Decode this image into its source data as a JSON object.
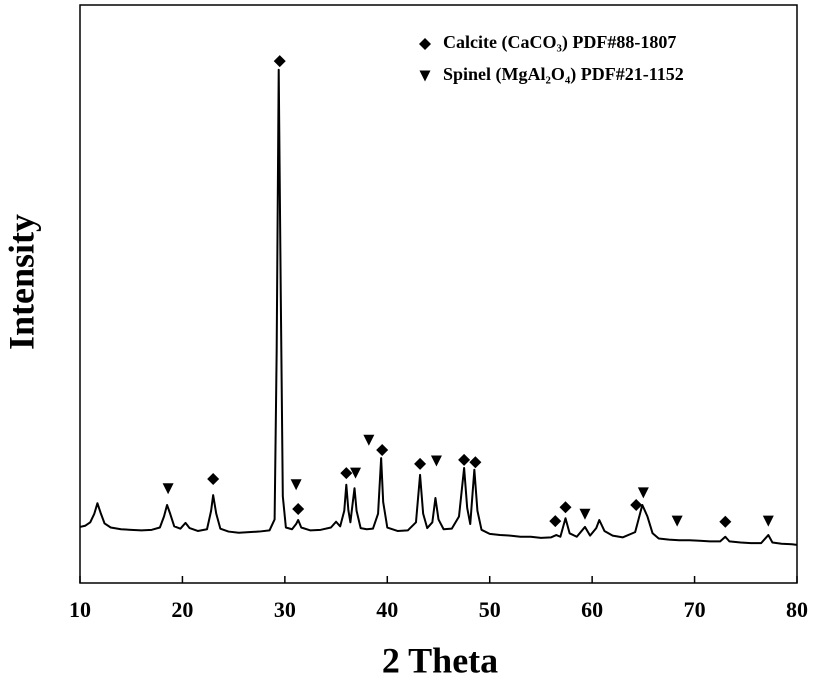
{
  "chart_data": {
    "type": "line",
    "xlabel": "2 Theta",
    "ylabel": "Intensity",
    "color": "#000000",
    "xlim": [
      10,
      80
    ],
    "xticks": [
      10,
      20,
      30,
      40,
      50,
      60,
      70,
      80
    ],
    "ylim": [
      0,
      100
    ],
    "x": [
      10,
      10.5,
      11,
      11.4,
      11.7,
      12,
      12.4,
      13,
      14,
      15,
      16,
      17,
      17.8,
      18.2,
      18.5,
      18.8,
      19.2,
      19.8,
      20.3,
      20.7,
      21.5,
      22.4,
      22.8,
      23.0,
      23.3,
      23.7,
      24.5,
      25.5,
      26.5,
      27.5,
      28.5,
      29.0,
      29.2,
      29.4,
      29.6,
      29.8,
      30.1,
      30.7,
      31.1,
      31.3,
      31.6,
      32.5,
      33.5,
      34.5,
      35.0,
      35.4,
      35.8,
      36.0,
      36.2,
      36.4,
      36.6,
      36.8,
      37.0,
      37.4,
      38.0,
      38.6,
      39.1,
      39.4,
      39.6,
      40.0,
      41,
      42,
      42.8,
      43.2,
      43.5,
      43.9,
      44.4,
      44.7,
      45.0,
      45.5,
      46.3,
      47.0,
      47.5,
      47.8,
      48.1,
      48.5,
      48.8,
      49.2,
      50,
      51,
      52,
      53,
      54,
      55,
      56,
      56.5,
      56.9,
      57.4,
      57.8,
      58.5,
      59.3,
      59.8,
      60.4,
      60.7,
      61.2,
      62,
      63,
      64.2,
      64.9,
      65.4,
      65.9,
      66.5,
      67.5,
      68.5,
      69.5,
      70.5,
      71.5,
      72.5,
      73.0,
      73.4,
      74.5,
      75.5,
      76.5,
      77.2,
      77.6,
      78.5,
      79.5,
      80
    ],
    "values": [
      9.7,
      9.9,
      10.5,
      12,
      13.8,
      12.2,
      10.3,
      9.6,
      9.3,
      9.2,
      9.1,
      9.2,
      9.6,
      11.5,
      13.5,
      12.0,
      9.8,
      9.4,
      10.4,
      9.5,
      9.0,
      9.3,
      12.5,
      15.2,
      12.0,
      9.4,
      8.9,
      8.7,
      8.8,
      8.9,
      9.1,
      11,
      40,
      88.8,
      50,
      15,
      9.6,
      9.3,
      10.2,
      10.9,
      9.6,
      9.1,
      9.2,
      9.6,
      10.6,
      9.8,
      12.5,
      17.0,
      12.6,
      10.5,
      13.5,
      16.4,
      12.5,
      9.5,
      9.3,
      9.4,
      12.0,
      21.6,
      14.0,
      9.6,
      9.0,
      9.1,
      10.5,
      18.7,
      12,
      9.5,
      10.5,
      14.7,
      11.0,
      9.3,
      9.4,
      11.5,
      19.9,
      13.0,
      10.2,
      19.6,
      12.5,
      9.2,
      8.5,
      8.3,
      8.2,
      8.0,
      8.0,
      7.8,
      7.9,
      8.3,
      8.0,
      11.2,
      8.6,
      8.0,
      9.7,
      8.2,
      9.5,
      10.9,
      9.0,
      8.2,
      7.9,
      8.8,
      13.5,
      11.5,
      8.6,
      7.7,
      7.5,
      7.4,
      7.4,
      7.3,
      7.2,
      7.2,
      8.0,
      7.2,
      7.0,
      6.9,
      6.9,
      8.3,
      7.0,
      6.8,
      6.7,
      6.6
    ],
    "markers": [
      {
        "name": "Calcite (CaCO₃) PDF#88-1807",
        "marker": "diamond",
        "color": "#000000",
        "x": [
          23.0,
          29.5,
          31.3,
          36.0,
          39.5,
          43.2,
          47.5,
          48.6,
          56.4,
          57.4,
          64.3,
          73.0
        ],
        "values": [
          18.0,
          90.3,
          12.8,
          19.0,
          23.0,
          20.6,
          21.3,
          20.9,
          10.7,
          13.1,
          13.5,
          10.6
        ]
      },
      {
        "name": "Spinel (MgAl₂O₄) PDF#21-1152",
        "marker": "triangle-down",
        "color": "#000000",
        "x": [
          18.6,
          31.1,
          36.9,
          38.2,
          44.8,
          59.3,
          65.0,
          68.3,
          77.2
        ],
        "values": [
          16.3,
          17.0,
          19.0,
          24.7,
          21.1,
          11.9,
          15.6,
          10.7,
          10.7
        ]
      }
    ]
  }
}
